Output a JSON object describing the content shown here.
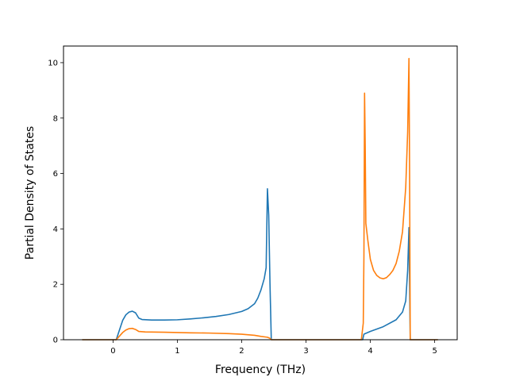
{
  "chart_data": {
    "type": "line",
    "title": "",
    "xlabel": "Frequency (THz)",
    "ylabel": "Partial Density of States",
    "xlim": [
      -0.77,
      5.35
    ],
    "ylim": [
      0,
      10.6
    ],
    "xticks": [
      0,
      1,
      2,
      3,
      4,
      5
    ],
    "yticks": [
      0,
      2,
      4,
      6,
      8,
      10
    ],
    "xtick_labels": [
      "0",
      "1",
      "2",
      "3",
      "4",
      "5"
    ],
    "ytick_labels": [
      "0",
      "2",
      "4",
      "6",
      "8",
      "10"
    ],
    "grid": false,
    "legend": null,
    "series": [
      {
        "color": "#1f77b4",
        "points": [
          [
            -0.48,
            0.0
          ],
          [
            0.05,
            0.0
          ],
          [
            0.1,
            0.35
          ],
          [
            0.15,
            0.7
          ],
          [
            0.2,
            0.9
          ],
          [
            0.25,
            1.0
          ],
          [
            0.3,
            1.03
          ],
          [
            0.35,
            0.97
          ],
          [
            0.4,
            0.78
          ],
          [
            0.45,
            0.73
          ],
          [
            0.6,
            0.71
          ],
          [
            0.8,
            0.71
          ],
          [
            1.0,
            0.72
          ],
          [
            1.2,
            0.75
          ],
          [
            1.4,
            0.79
          ],
          [
            1.6,
            0.84
          ],
          [
            1.8,
            0.91
          ],
          [
            2.0,
            1.02
          ],
          [
            2.1,
            1.12
          ],
          [
            2.2,
            1.3
          ],
          [
            2.25,
            1.5
          ],
          [
            2.3,
            1.8
          ],
          [
            2.35,
            2.2
          ],
          [
            2.38,
            2.6
          ],
          [
            2.4,
            5.45
          ],
          [
            2.42,
            4.5
          ],
          [
            2.44,
            2.0
          ],
          [
            2.46,
            0.0
          ],
          [
            3.88,
            0.0
          ],
          [
            3.9,
            0.2
          ],
          [
            4.0,
            0.3
          ],
          [
            4.2,
            0.47
          ],
          [
            4.4,
            0.72
          ],
          [
            4.5,
            1.0
          ],
          [
            4.55,
            1.4
          ],
          [
            4.58,
            2.5
          ],
          [
            4.6,
            4.05
          ],
          [
            4.61,
            2.0
          ],
          [
            4.62,
            0.0
          ],
          [
            5.05,
            0.0
          ]
        ]
      },
      {
        "color": "#ff7f0e",
        "points": [
          [
            -0.48,
            0.0
          ],
          [
            0.05,
            0.0
          ],
          [
            0.1,
            0.13
          ],
          [
            0.15,
            0.26
          ],
          [
            0.2,
            0.35
          ],
          [
            0.25,
            0.4
          ],
          [
            0.3,
            0.41
          ],
          [
            0.35,
            0.37
          ],
          [
            0.4,
            0.3
          ],
          [
            0.5,
            0.28
          ],
          [
            0.8,
            0.27
          ],
          [
            1.0,
            0.26
          ],
          [
            1.2,
            0.25
          ],
          [
            1.5,
            0.24
          ],
          [
            1.8,
            0.22
          ],
          [
            2.0,
            0.2
          ],
          [
            2.2,
            0.16
          ],
          [
            2.3,
            0.12
          ],
          [
            2.4,
            0.09
          ],
          [
            2.44,
            0.05
          ],
          [
            2.46,
            0.0
          ],
          [
            3.86,
            0.0
          ],
          [
            3.89,
            0.6
          ],
          [
            3.9,
            3.0
          ],
          [
            3.91,
            8.9
          ],
          [
            3.92,
            7.0
          ],
          [
            3.93,
            4.2
          ],
          [
            3.96,
            3.6
          ],
          [
            4.0,
            2.9
          ],
          [
            4.05,
            2.5
          ],
          [
            4.1,
            2.32
          ],
          [
            4.15,
            2.23
          ],
          [
            4.2,
            2.2
          ],
          [
            4.25,
            2.24
          ],
          [
            4.3,
            2.35
          ],
          [
            4.35,
            2.5
          ],
          [
            4.4,
            2.75
          ],
          [
            4.45,
            3.2
          ],
          [
            4.5,
            3.9
          ],
          [
            4.55,
            5.5
          ],
          [
            4.58,
            7.5
          ],
          [
            4.6,
            10.15
          ],
          [
            4.61,
            6.0
          ],
          [
            4.62,
            0.0
          ],
          [
            5.05,
            0.0
          ]
        ]
      }
    ]
  }
}
